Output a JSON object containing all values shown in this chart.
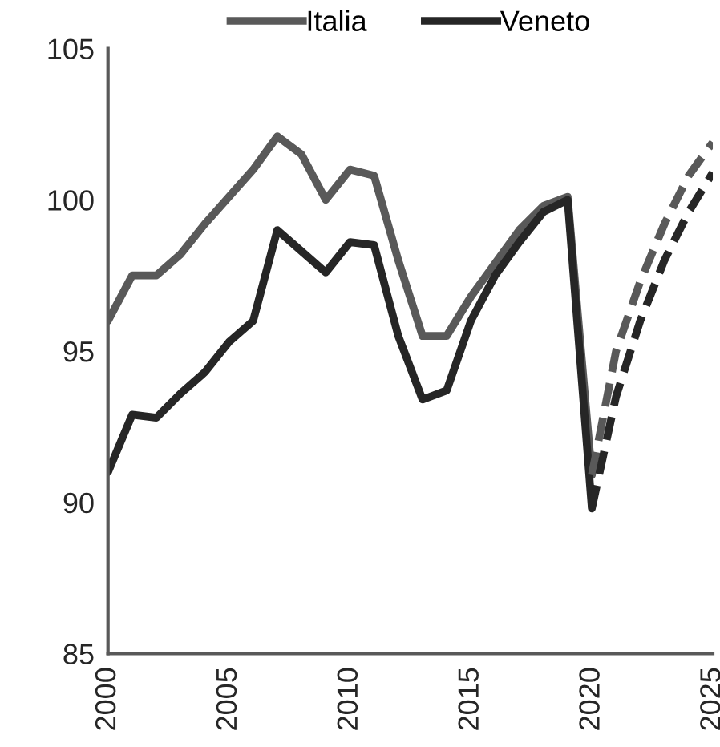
{
  "chart_data": {
    "type": "line",
    "x": [
      2000,
      2001,
      2002,
      2003,
      2004,
      2005,
      2006,
      2007,
      2008,
      2009,
      2010,
      2011,
      2012,
      2013,
      2014,
      2015,
      2016,
      2017,
      2018,
      2019,
      2020,
      2021,
      2022,
      2023,
      2024,
      2025
    ],
    "series": [
      {
        "name": "Italia",
        "color": "#595959",
        "line_style": "solid",
        "values": [
          96.0,
          97.5,
          97.5,
          98.2,
          99.2,
          100.1,
          101.0,
          102.1,
          101.5,
          100.0,
          101.0,
          100.8,
          98.0,
          95.5,
          95.5,
          96.8,
          97.9,
          99.0,
          99.8,
          100.1,
          90.9,
          null,
          null,
          null,
          null,
          null
        ]
      },
      {
        "name": "Veneto",
        "color": "#262626",
        "line_style": "solid",
        "values": [
          91.0,
          92.9,
          92.8,
          93.6,
          94.3,
          95.3,
          96.0,
          99.0,
          98.3,
          97.6,
          98.6,
          98.5,
          95.5,
          93.4,
          93.7,
          96.0,
          97.5,
          98.6,
          99.6,
          100.0,
          89.8,
          null,
          null,
          null,
          null,
          null
        ]
      },
      {
        "color": "#595959",
        "line_style": "dashed",
        "values": [
          null,
          null,
          null,
          null,
          null,
          null,
          null,
          null,
          null,
          null,
          null,
          null,
          null,
          null,
          null,
          null,
          null,
          null,
          null,
          null,
          90.9,
          95.0,
          97.3,
          99.2,
          100.8,
          101.9
        ]
      },
      {
        "color": "#262626",
        "line_style": "dashed",
        "values": [
          null,
          null,
          null,
          null,
          null,
          null,
          null,
          null,
          null,
          null,
          null,
          null,
          null,
          null,
          null,
          null,
          null,
          null,
          null,
          null,
          89.8,
          93.5,
          96.0,
          98.0,
          99.6,
          100.9
        ]
      }
    ],
    "xlim": [
      2000,
      2025
    ],
    "xticks": [
      2000,
      2005,
      2010,
      2015,
      2020,
      2025
    ],
    "ylim": [
      85,
      105
    ],
    "yticks": [
      85,
      90,
      95,
      100,
      105
    ],
    "grid": false,
    "legend": "top",
    "marker": "none"
  }
}
